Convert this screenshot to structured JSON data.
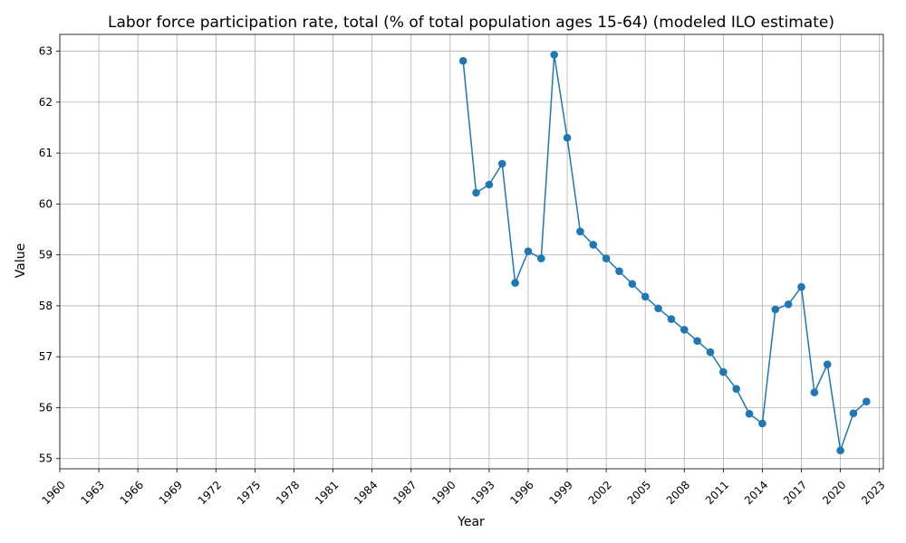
{
  "chart_data": {
    "type": "line",
    "title": "Labor force participation rate, total (% of total population ages 15-64) (modeled ILO estimate)",
    "xlabel": "Year",
    "ylabel": "Value",
    "xlim": [
      1960,
      2023.3
    ],
    "ylim": [
      54.8,
      63.33
    ],
    "xticks": [
      1960,
      1963,
      1966,
      1969,
      1972,
      1975,
      1978,
      1981,
      1984,
      1987,
      1990,
      1993,
      1996,
      1999,
      2002,
      2005,
      2008,
      2011,
      2014,
      2017,
      2020,
      2023
    ],
    "yticks": [
      55,
      56,
      57,
      58,
      59,
      60,
      61,
      62,
      63
    ],
    "grid": true,
    "line_color": "#1f77b4",
    "marker": "circle",
    "x": [
      1991,
      1992,
      1993,
      1994,
      1995,
      1996,
      1997,
      1998,
      1999,
      2000,
      2001,
      2002,
      2003,
      2004,
      2005,
      2006,
      2007,
      2008,
      2009,
      2010,
      2011,
      2012,
      2013,
      2014,
      2015,
      2016,
      2017,
      2018,
      2019,
      2020,
      2021,
      2022
    ],
    "values": [
      62.81,
      60.22,
      60.38,
      60.79,
      58.45,
      59.07,
      58.93,
      62.93,
      61.3,
      59.46,
      59.2,
      58.93,
      58.68,
      58.43,
      58.18,
      57.95,
      57.74,
      57.53,
      57.31,
      57.09,
      56.7,
      56.37,
      55.88,
      55.69,
      57.93,
      58.03,
      58.37,
      56.3,
      56.85,
      55.16,
      55.89,
      56.12
    ]
  }
}
